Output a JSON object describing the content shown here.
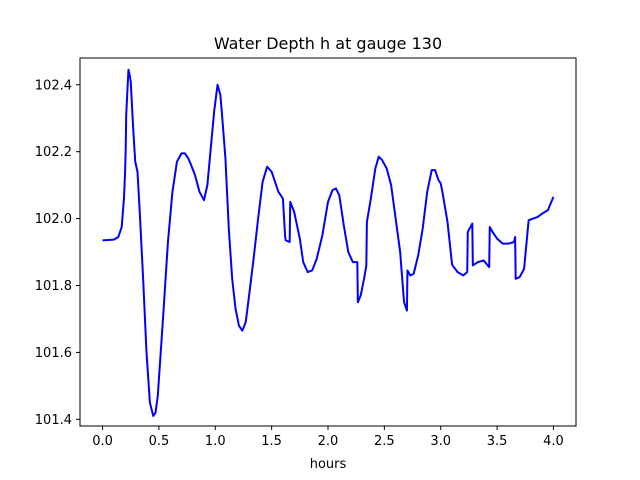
{
  "chart_data": {
    "type": "line",
    "title": "Water Depth h at gauge 130",
    "xlabel": "hours",
    "ylabel": "",
    "xlim": [
      -0.2,
      4.2
    ],
    "ylim": [
      101.38,
      102.48
    ],
    "x_ticks": [
      "0.0",
      "0.5",
      "1.0",
      "1.5",
      "2.0",
      "2.5",
      "3.0",
      "3.5",
      "4.0"
    ],
    "y_ticks": [
      "101.4",
      "101.6",
      "101.8",
      "102.0",
      "102.2",
      "102.4"
    ],
    "grid": false,
    "series": [
      {
        "color": "#0000ff",
        "x": [
          0.0,
          0.05,
          0.1,
          0.14,
          0.17,
          0.19,
          0.2,
          0.205,
          0.21,
          0.22,
          0.23,
          0.24,
          0.25,
          0.27,
          0.29,
          0.31,
          0.33,
          0.36,
          0.39,
          0.42,
          0.45,
          0.47,
          0.49,
          0.51,
          0.54,
          0.58,
          0.62,
          0.66,
          0.7,
          0.73,
          0.76,
          0.78,
          0.82,
          0.86,
          0.9,
          0.93,
          0.96,
          0.99,
          1.02,
          1.045,
          1.06,
          1.09,
          1.12,
          1.15,
          1.18,
          1.21,
          1.24,
          1.27,
          1.3,
          1.34,
          1.38,
          1.42,
          1.46,
          1.5,
          1.53,
          1.56,
          1.6,
          1.62,
          1.625,
          1.66,
          1.665,
          1.7,
          1.75,
          1.78,
          1.82,
          1.86,
          1.9,
          1.95,
          2.0,
          2.04,
          2.07,
          2.1,
          2.14,
          2.18,
          2.22,
          2.24,
          2.26,
          2.265,
          2.29,
          2.32,
          2.34,
          2.345,
          2.38,
          2.42,
          2.45,
          2.48,
          2.52,
          2.56,
          2.6,
          2.64,
          2.67,
          2.675,
          2.7,
          2.705,
          2.73,
          2.76,
          2.8,
          2.84,
          2.88,
          2.92,
          2.95,
          2.98,
          3.0,
          3.02,
          3.06,
          3.1,
          3.105,
          3.15,
          3.2,
          3.235,
          3.24,
          3.28,
          3.285,
          3.33,
          3.38,
          3.43,
          3.435,
          3.46,
          3.5,
          3.55,
          3.6,
          3.65,
          3.66,
          3.665,
          3.7,
          3.74,
          3.745,
          3.78,
          3.82,
          3.86,
          3.9,
          3.95,
          4.0
        ],
        "values": [
          101.935,
          101.936,
          101.937,
          101.945,
          101.975,
          102.06,
          102.14,
          102.2,
          102.31,
          102.38,
          102.445,
          102.43,
          102.41,
          102.28,
          102.17,
          102.14,
          102.02,
          101.82,
          101.6,
          101.45,
          101.41,
          101.42,
          101.47,
          101.57,
          101.72,
          101.93,
          102.08,
          102.17,
          102.195,
          102.195,
          102.18,
          102.165,
          102.13,
          102.08,
          102.055,
          102.1,
          102.21,
          102.32,
          102.4,
          102.37,
          102.31,
          102.18,
          101.97,
          101.82,
          101.73,
          101.68,
          101.665,
          101.69,
          101.77,
          101.88,
          102.0,
          102.11,
          102.155,
          102.14,
          102.11,
          102.08,
          102.06,
          101.945,
          101.935,
          101.93,
          102.05,
          102.02,
          101.94,
          101.87,
          101.84,
          101.845,
          101.88,
          101.95,
          102.05,
          102.085,
          102.09,
          102.07,
          101.98,
          101.9,
          101.87,
          101.87,
          101.87,
          101.75,
          101.77,
          101.82,
          101.86,
          101.99,
          102.06,
          102.15,
          102.185,
          102.175,
          102.15,
          102.1,
          102.0,
          101.9,
          101.77,
          101.75,
          101.725,
          101.845,
          101.83,
          101.835,
          101.89,
          101.97,
          102.08,
          102.145,
          102.145,
          102.115,
          102.105,
          102.07,
          101.99,
          101.865,
          101.86,
          101.84,
          101.83,
          101.84,
          101.96,
          101.985,
          101.86,
          101.87,
          101.875,
          101.855,
          101.975,
          101.96,
          101.94,
          101.925,
          101.925,
          101.93,
          101.945,
          101.82,
          101.825,
          101.85,
          101.87,
          101.995,
          102.0,
          102.005,
          102.015,
          102.025,
          102.065
        ]
      }
    ]
  }
}
